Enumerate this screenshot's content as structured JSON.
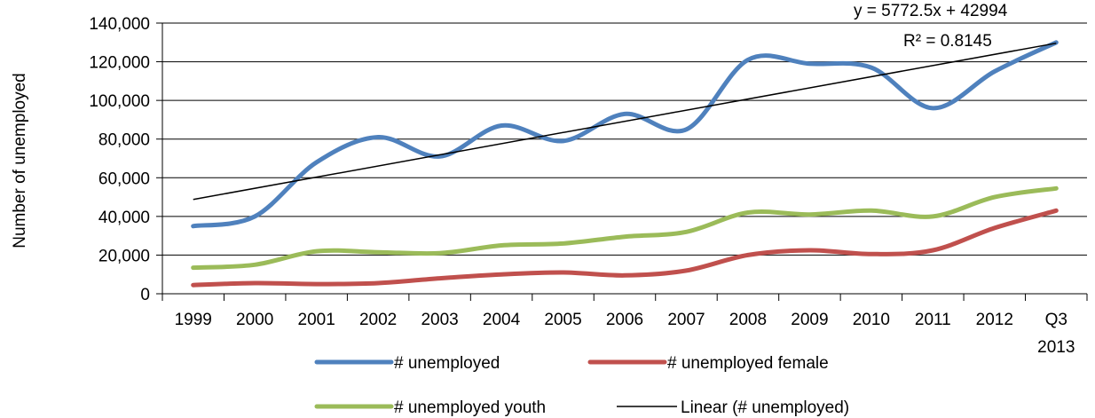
{
  "chart_data": {
    "type": "line",
    "title": "",
    "xlabel": "",
    "ylabel": "Number of unemployed",
    "ylim": [
      0,
      140000
    ],
    "yticks": [
      "0",
      "20,000",
      "40,000",
      "60,000",
      "80,000",
      "100,000",
      "120,000",
      "140,000"
    ],
    "ytick_values": [
      0,
      20000,
      40000,
      60000,
      80000,
      100000,
      120000,
      140000
    ],
    "categories": [
      "1999",
      "2000",
      "2001",
      "2002",
      "2003",
      "2004",
      "2005",
      "2006",
      "2007",
      "2008",
      "2009",
      "2010",
      "2011",
      "2012",
      "Q3 2013"
    ],
    "category_lines": [
      [
        "1999"
      ],
      [
        "2000"
      ],
      [
        "2001"
      ],
      [
        "2002"
      ],
      [
        "2003"
      ],
      [
        "2004"
      ],
      [
        "2005"
      ],
      [
        "2006"
      ],
      [
        "2007"
      ],
      [
        "2008"
      ],
      [
        "2009"
      ],
      [
        "2010"
      ],
      [
        "2011"
      ],
      [
        "2012"
      ],
      [
        "Q3",
        "2013"
      ]
    ],
    "grid": "horizontal",
    "legend_position": "bottom",
    "series": [
      {
        "name": "# unemployed",
        "color": "#4f81bd",
        "values": [
          35000,
          40000,
          68000,
          81000,
          71000,
          87000,
          79000,
          93000,
          85000,
          121000,
          119000,
          117000,
          96000,
          115000,
          130000
        ]
      },
      {
        "name": "# unemployed female",
        "color": "#c0504d",
        "values": [
          4500,
          5500,
          5000,
          5500,
          8000,
          10000,
          11000,
          9500,
          12000,
          20000,
          22500,
          20500,
          22500,
          34000,
          43000
        ]
      },
      {
        "name": "# unemployed youth",
        "color": "#9bbb59",
        "values": [
          13500,
          15000,
          22000,
          21500,
          21000,
          25000,
          26000,
          29500,
          32000,
          42000,
          41000,
          43000,
          40000,
          50000,
          54500
        ]
      }
    ],
    "trendline": {
      "name": "Linear (# unemployed)",
      "color": "#000000",
      "slope": 5772.5,
      "intercept": 42994,
      "equation": "y = 5772.5x + 42994",
      "r2": "R² = 0.8145"
    }
  }
}
